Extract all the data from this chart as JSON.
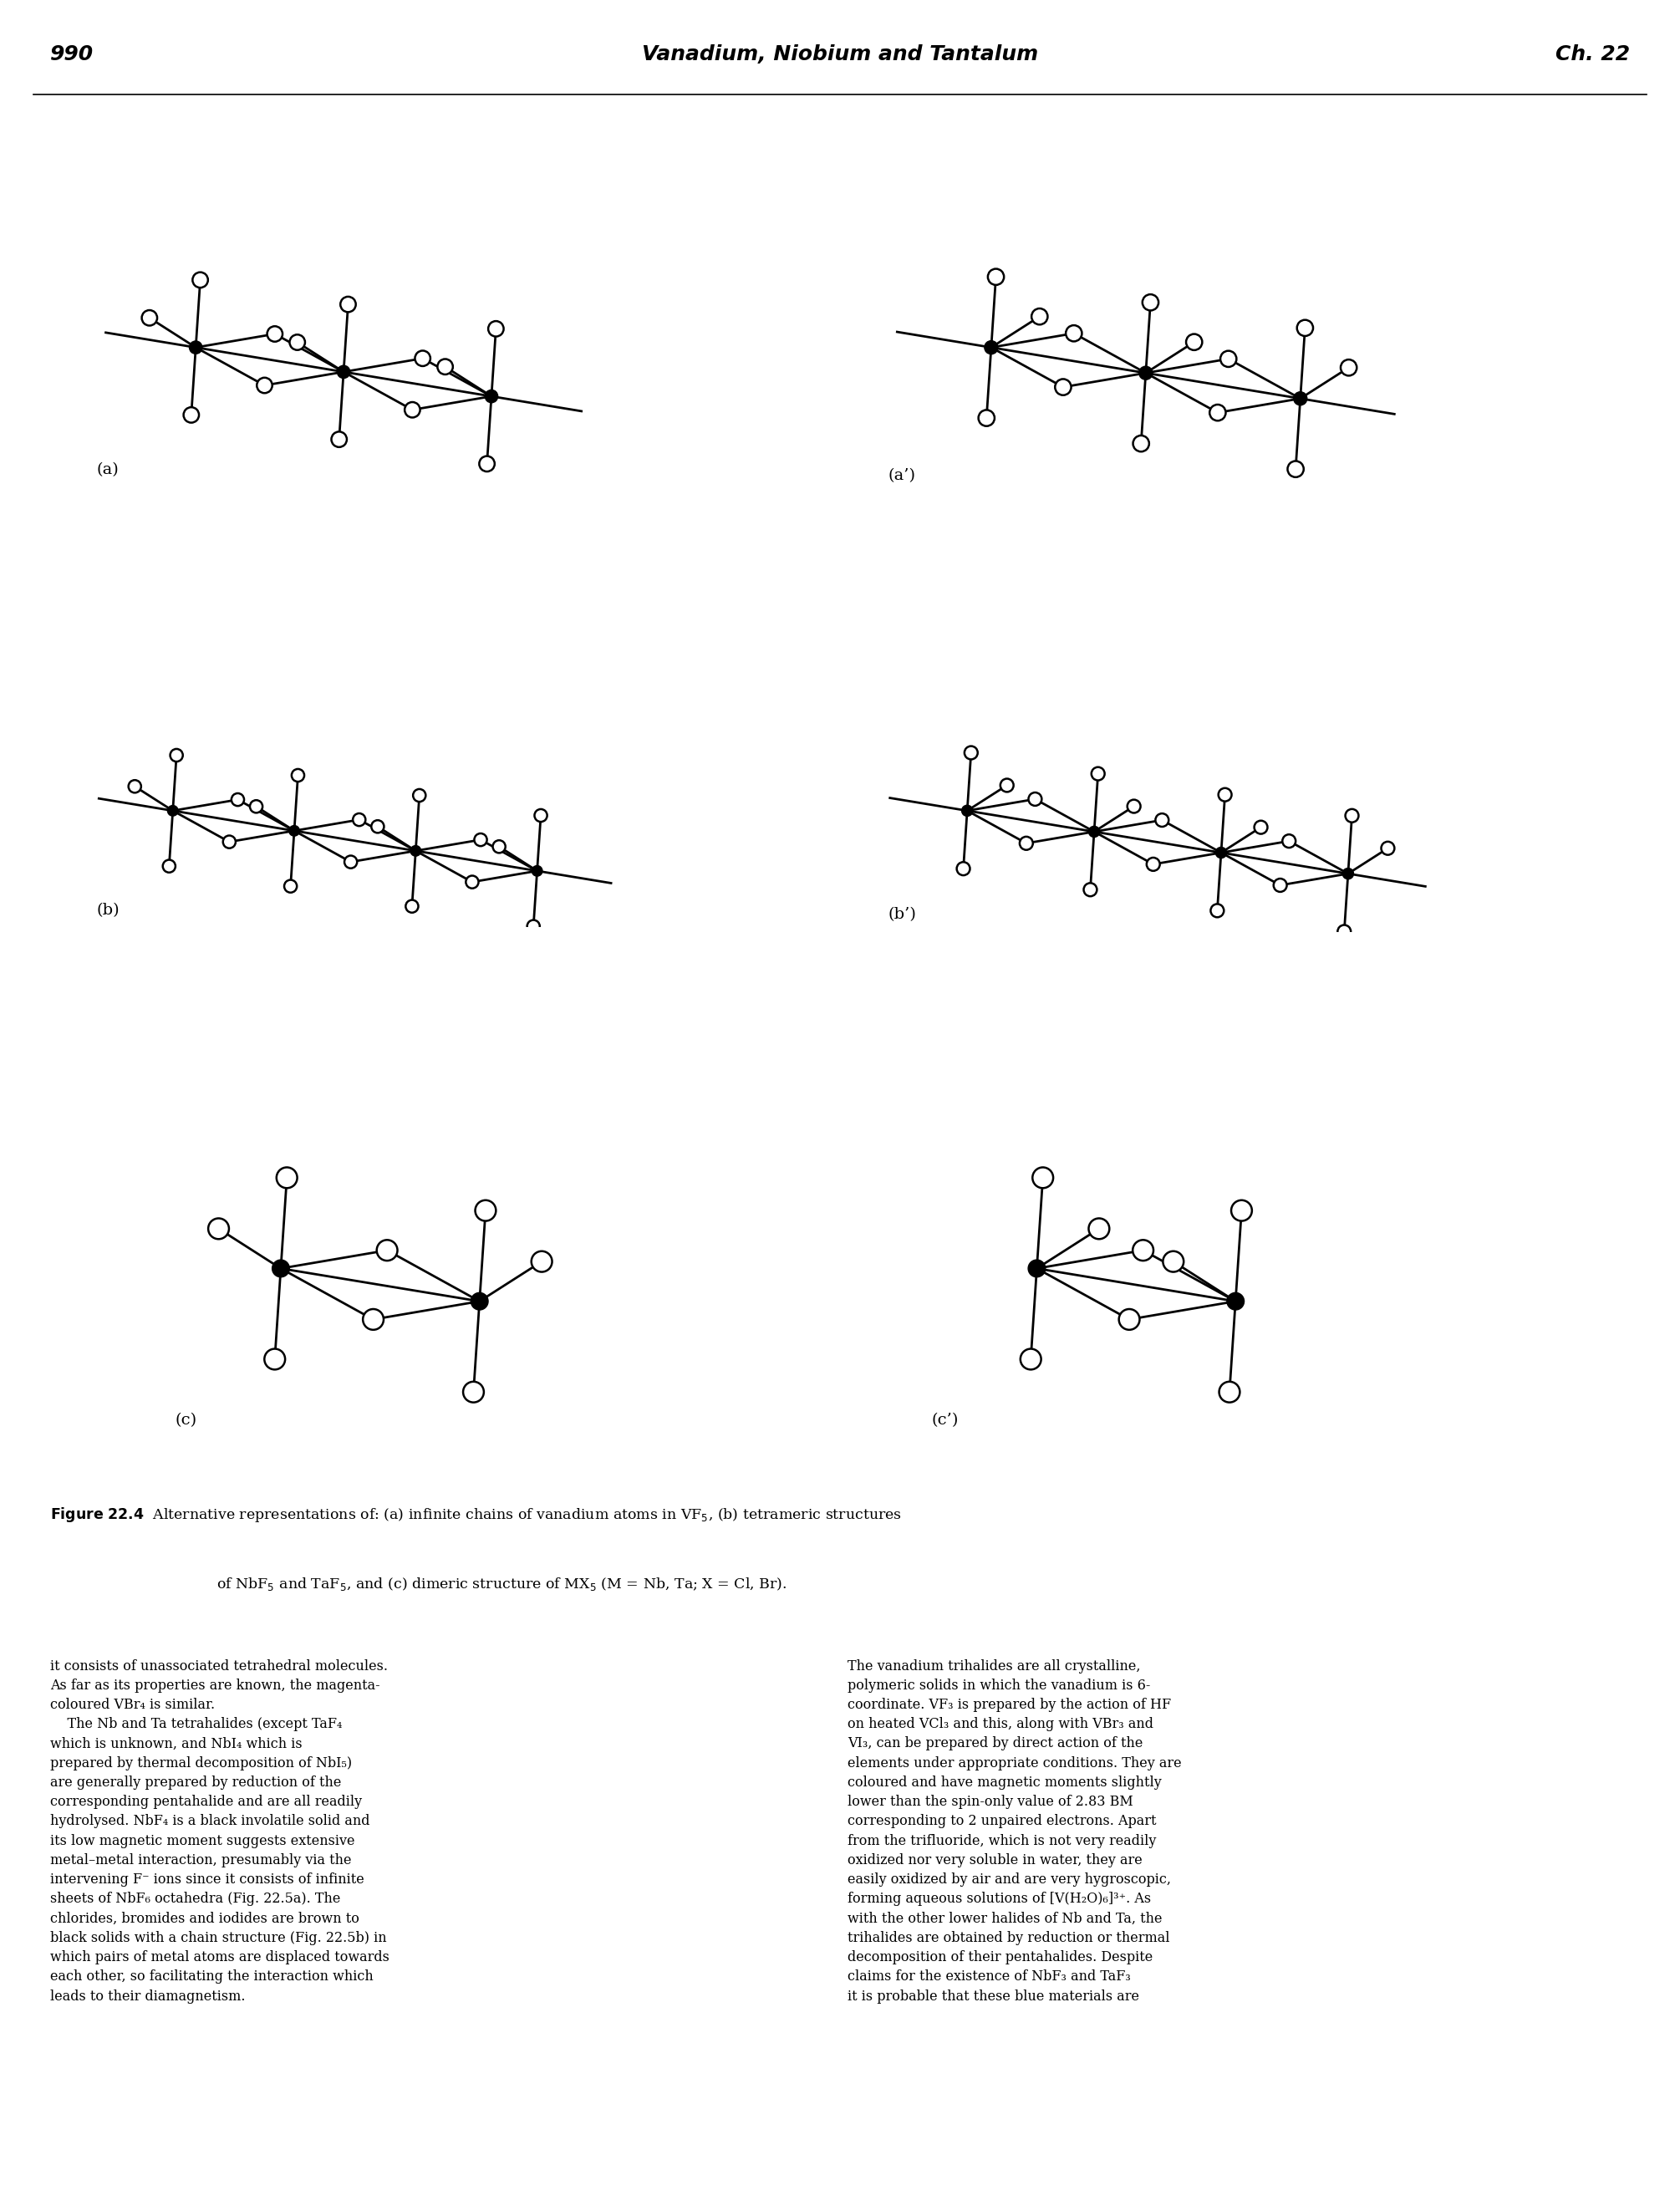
{
  "page_number": "990",
  "header_title": "Vanadium, Niobium and Tantalum",
  "header_chapter": "Ch. 22",
  "labels": {
    "a": "(a)",
    "a_prime": "(a’)",
    "b": "(b)",
    "b_prime": "(b’)",
    "c": "(c)",
    "c_prime": "(c’)"
  },
  "caption_bold": "Figure 22.4",
  "caption_rest": "  Alternative representations of: (a) infinite chains of vanadium atoms in VF₅, (b) tetrameric structures\n            of NbF₅ and TaF₅, and (c) dimeric structure of MX₅ (M = Nb, Ta; X = Cl, Br).",
  "left_text": "it consists of unassociated tetrahedral molecules.\nAs far as its properties are known, the magenta-\ncoloured VBr₄ is similar.\n    The Nb and Ta tetrahalides (except TaF₄\nwhich is unknown, and NbI₄ which is\nprepared by thermal decomposition of NbI₅)\nare generally prepared by reduction of the\ncorresponding pentahalide and are all readily\nhydrolysed. NbF₄ is a black involatile solid and\nits low magnetic moment suggests extensive\nmetal–metal interaction, presumably via the\nintervening F⁻ ions since it consists of infinite\nsheets of NbF₆ octahedra (Fig. 22.5a). The\nchlorides, bromides and iodides are brown to\nblack solids with a chain structure (Fig. 22.5b) in\nwhich pairs of metal atoms are displaced towards\neach other, so facilitating the interaction which\nleads to their diamagnetism.",
  "right_text": "The vanadium trihalides are all crystalline,\npolymeric solids in which the vanadium is 6-\ncoordinate. VF₃ is prepared by the action of HF\non heated VCl₃ and this, along with VBr₃ and\nVI₃, can be prepared by direct action of the\nelements under appropriate conditions. They are\ncoloured and have magnetic moments slightly\nlower than the spin-only value of 2.83 BM\ncorresponding to 2 unpaired electrons. Apart\nfrom the trifluoride, which is not very readily\noxidized nor very soluble in water, they are\neasily oxidized by air and are very hygroscopic,\nforming aqueous solutions of [V(H₂O)₆]³⁺. As\nwith the other lower halides of Nb and Ta, the\ntrihalides are obtained by reduction or thermal\ndecomposition of their pentahalides. Despite\nclaims for the existence of NbF₃ and TaF₃\nit is probable that these blue materials are"
}
